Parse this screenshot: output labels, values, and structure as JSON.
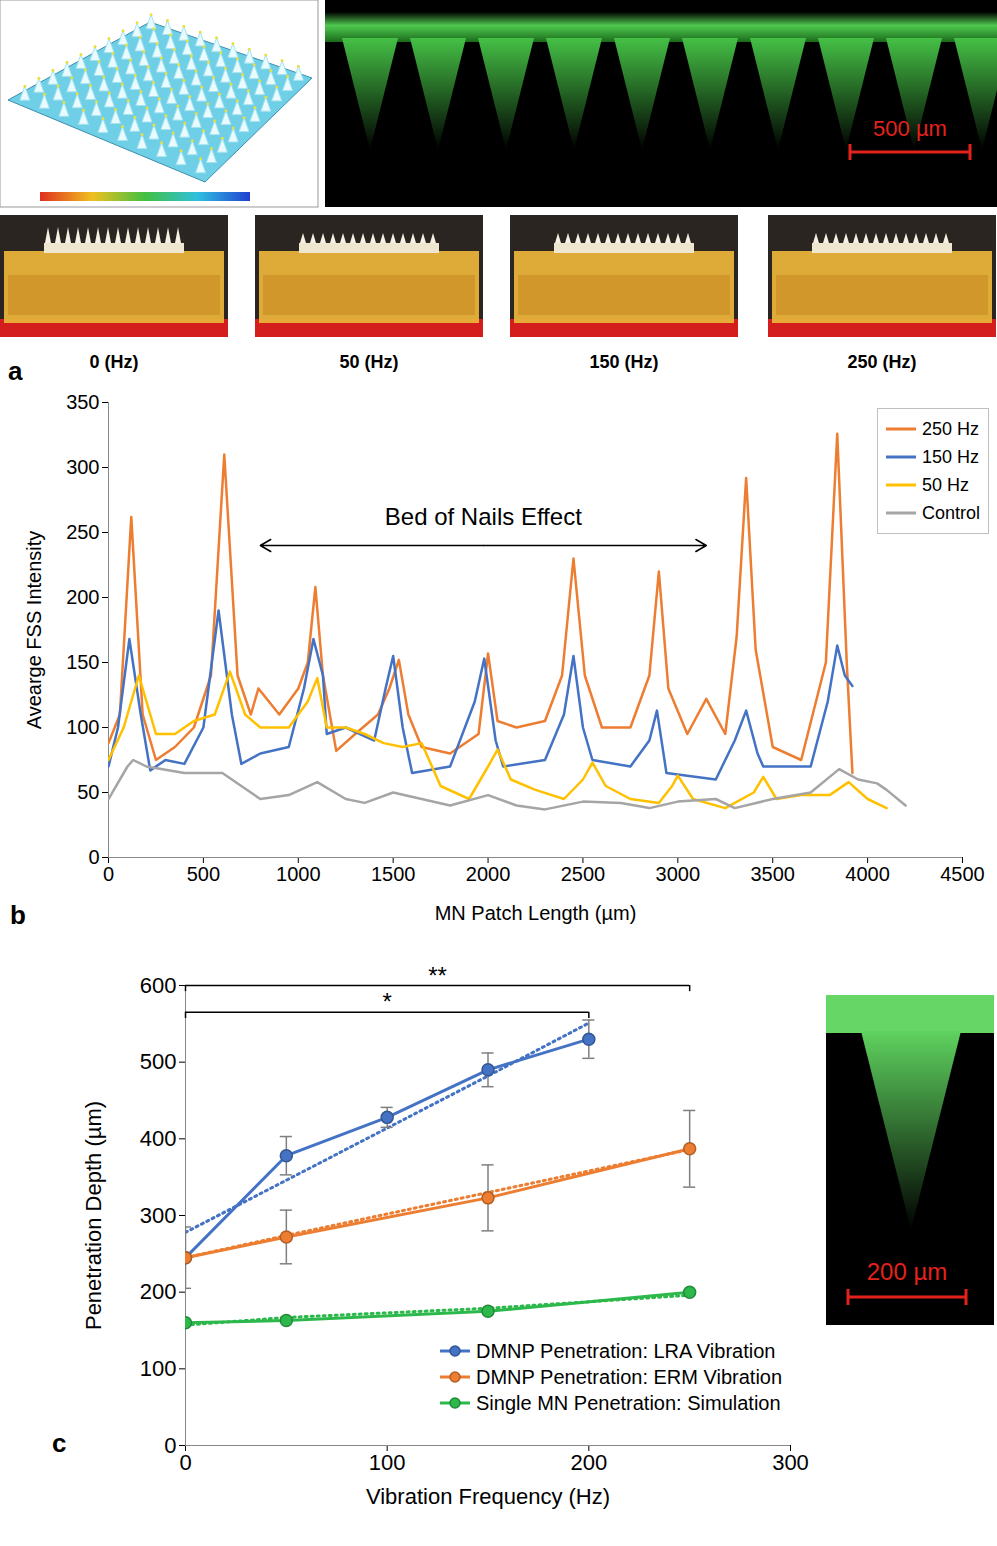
{
  "panel_a": {
    "letter": "a",
    "scale_bar": "500 µm",
    "photo_labels": [
      "0 (Hz)",
      "50 (Hz)",
      "150 (Hz)",
      "250 (Hz)"
    ]
  },
  "chart_data": [
    {
      "panel": "b",
      "type": "line",
      "xlabel": "MN Patch Length (µm)",
      "ylabel": "Avearge FSS Intensity",
      "xlim": [
        0,
        4500
      ],
      "xticks": [
        0,
        500,
        1000,
        1500,
        2000,
        2500,
        3000,
        3500,
        4000,
        4500
      ],
      "ylim": [
        0,
        350
      ],
      "yticks": [
        0,
        50,
        100,
        150,
        200,
        250,
        300,
        350
      ],
      "grid": false,
      "legend": "top-right",
      "series": [
        {
          "name": "250 Hz",
          "color": "#ED7D31",
          "x": [
            0,
            60,
            120,
            180,
            250,
            350,
            450,
            540,
            610,
            680,
            750,
            790,
            900,
            1000,
            1050,
            1090,
            1130,
            1200,
            1300,
            1420,
            1480,
            1530,
            1580,
            1650,
            1800,
            1950,
            2000,
            2050,
            2150,
            2300,
            2390,
            2450,
            2510,
            2600,
            2750,
            2850,
            2900,
            2950,
            3050,
            3150,
            3250,
            3310,
            3360,
            3410,
            3500,
            3650,
            3780,
            3840,
            3890,
            3920
          ],
          "values": [
            88,
            110,
            262,
            110,
            75,
            85,
            100,
            140,
            310,
            140,
            110,
            130,
            110,
            130,
            150,
            208,
            140,
            82,
            95,
            110,
            130,
            152,
            110,
            85,
            80,
            95,
            157,
            105,
            100,
            105,
            140,
            230,
            140,
            100,
            100,
            140,
            220,
            130,
            95,
            122,
            95,
            170,
            292,
            160,
            85,
            75,
            150,
            326,
            150,
            65
          ]
        },
        {
          "name": "150 Hz",
          "color": "#4472C4",
          "x": [
            0,
            50,
            110,
            170,
            220,
            300,
            400,
            500,
            580,
            650,
            700,
            800,
            950,
            1030,
            1080,
            1130,
            1150,
            1250,
            1400,
            1460,
            1500,
            1550,
            1600,
            1800,
            1930,
            1980,
            2040,
            2080,
            2300,
            2400,
            2450,
            2500,
            2550,
            2750,
            2850,
            2890,
            2940,
            3200,
            3300,
            3360,
            3420,
            3450,
            3700,
            3790,
            3840,
            3880,
            3920
          ],
          "values": [
            70,
            100,
            168,
            110,
            67,
            75,
            72,
            100,
            190,
            110,
            72,
            80,
            85,
            130,
            168,
            140,
            95,
            100,
            90,
            130,
            155,
            100,
            65,
            70,
            120,
            153,
            90,
            70,
            75,
            110,
            155,
            100,
            75,
            70,
            90,
            113,
            65,
            60,
            90,
            113,
            80,
            70,
            70,
            120,
            163,
            140,
            132
          ]
        },
        {
          "name": "50 Hz",
          "color": "#FFC000",
          "x": [
            0,
            80,
            160,
            250,
            350,
            450,
            560,
            640,
            720,
            800,
            950,
            1050,
            1100,
            1150,
            1250,
            1350,
            1450,
            1550,
            1650,
            1750,
            1900,
            2000,
            2050,
            2120,
            2250,
            2400,
            2500,
            2550,
            2620,
            2750,
            2900,
            2970,
            3000,
            3080,
            3250,
            3400,
            3450,
            3520,
            3650,
            3800,
            3900,
            4000,
            4100
          ],
          "values": [
            75,
            100,
            140,
            95,
            95,
            105,
            110,
            143,
            110,
            100,
            100,
            120,
            138,
            100,
            100,
            95,
            88,
            85,
            88,
            55,
            45,
            70,
            83,
            60,
            52,
            45,
            60,
            73,
            55,
            45,
            42,
            55,
            63,
            45,
            38,
            50,
            62,
            45,
            48,
            48,
            58,
            45,
            38
          ]
        },
        {
          "name": "Control",
          "color": "#A5A5A5",
          "x": [
            0,
            100,
            130,
            200,
            400,
            600,
            700,
            800,
            950,
            1100,
            1250,
            1350,
            1500,
            1650,
            1800,
            2000,
            2150,
            2300,
            2500,
            2700,
            2850,
            3000,
            3200,
            3300,
            3500,
            3700,
            3850,
            3950,
            4050,
            4100,
            4200
          ],
          "values": [
            45,
            70,
            75,
            70,
            65,
            65,
            55,
            45,
            48,
            58,
            45,
            42,
            50,
            45,
            40,
            48,
            40,
            37,
            43,
            42,
            38,
            43,
            45,
            38,
            45,
            50,
            68,
            60,
            57,
            52,
            40
          ]
        }
      ],
      "annotations": [
        {
          "text": "Bed of Nails Effect",
          "x1": 800,
          "x2": 3150,
          "y": 240,
          "text_y": 262
        }
      ]
    },
    {
      "panel": "c",
      "type": "line",
      "xlabel": "Vibration Frequency (Hz)",
      "ylabel": "Penetration Depth (µm)",
      "xlim": [
        0,
        300
      ],
      "xticks": [
        0,
        100,
        200,
        300
      ],
      "ylim": [
        0,
        600
      ],
      "yticks": [
        0,
        100,
        200,
        300,
        400,
        500,
        600
      ],
      "grid": false,
      "legend": "bottom-right",
      "marker": "circle",
      "series": [
        {
          "name": "DMNP Penetration: LRA Vibration",
          "color": "#4472C4",
          "x": [
            0,
            50,
            100,
            150,
            200
          ],
          "values": [
            245,
            378,
            428,
            490,
            530
          ],
          "error": [
            40,
            25,
            13,
            22,
            25
          ],
          "trend": {
            "values": [
              278,
              346,
              414,
              482,
              551
            ],
            "line_style": "dotted"
          }
        },
        {
          "name": "DMNP Penetration: ERM Vibration",
          "color": "#ED7D31",
          "x": [
            0,
            50,
            150,
            250
          ],
          "values": [
            245,
            272,
            323,
            387
          ],
          "error": [
            null,
            35,
            43,
            50
          ],
          "trend": {
            "values": [
              245,
              274,
              330,
              386
            ],
            "line_style": "dotted"
          }
        },
        {
          "name": "Single MN Penetration: Simulation",
          "color": "#2DB84C",
          "x": [
            0,
            50,
            150,
            250
          ],
          "values": [
            160,
            163,
            175,
            200
          ],
          "trend": {
            "values": [
              157,
              167,
              179,
              196
            ],
            "line_style": "dotted"
          }
        }
      ],
      "significance": [
        {
          "from": 0,
          "to": 200,
          "y": 565,
          "label": "*"
        },
        {
          "from": 0,
          "to": 250,
          "y": 600,
          "label": "**"
        }
      ],
      "inset_scale_bar": "200 µm"
    }
  ]
}
